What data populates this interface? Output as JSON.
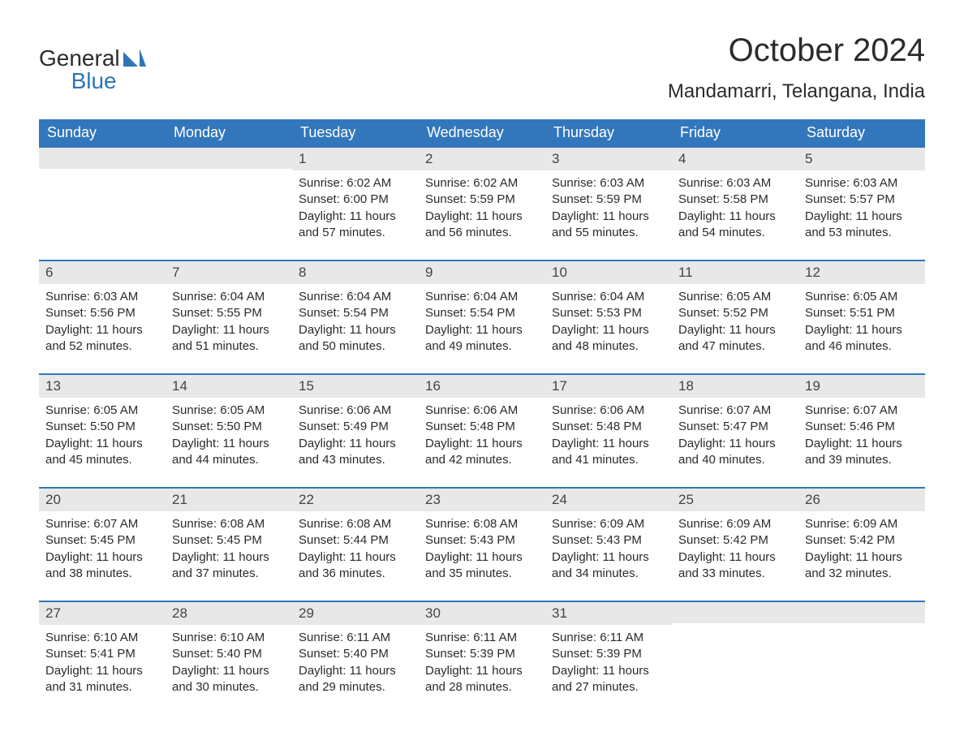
{
  "logo": {
    "top": "General",
    "bottom": "Blue"
  },
  "title": "October 2024",
  "location": "Mandamarri, Telangana, India",
  "colors": {
    "header_bg": "#3277bc",
    "header_text": "#ffffff",
    "daynum_bg": "#e8e8e8",
    "week_border": "#3277bc",
    "body_text": "#2b2b2b",
    "logo_blue": "#2f75b5"
  },
  "weekday_labels": [
    "Sunday",
    "Monday",
    "Tuesday",
    "Wednesday",
    "Thursday",
    "Friday",
    "Saturday"
  ],
  "weeks": [
    [
      null,
      null,
      {
        "n": "1",
        "sunrise": "6:02 AM",
        "sunset": "6:00 PM",
        "daylight": "11 hours and 57 minutes."
      },
      {
        "n": "2",
        "sunrise": "6:02 AM",
        "sunset": "5:59 PM",
        "daylight": "11 hours and 56 minutes."
      },
      {
        "n": "3",
        "sunrise": "6:03 AM",
        "sunset": "5:59 PM",
        "daylight": "11 hours and 55 minutes."
      },
      {
        "n": "4",
        "sunrise": "6:03 AM",
        "sunset": "5:58 PM",
        "daylight": "11 hours and 54 minutes."
      },
      {
        "n": "5",
        "sunrise": "6:03 AM",
        "sunset": "5:57 PM",
        "daylight": "11 hours and 53 minutes."
      }
    ],
    [
      {
        "n": "6",
        "sunrise": "6:03 AM",
        "sunset": "5:56 PM",
        "daylight": "11 hours and 52 minutes."
      },
      {
        "n": "7",
        "sunrise": "6:04 AM",
        "sunset": "5:55 PM",
        "daylight": "11 hours and 51 minutes."
      },
      {
        "n": "8",
        "sunrise": "6:04 AM",
        "sunset": "5:54 PM",
        "daylight": "11 hours and 50 minutes."
      },
      {
        "n": "9",
        "sunrise": "6:04 AM",
        "sunset": "5:54 PM",
        "daylight": "11 hours and 49 minutes."
      },
      {
        "n": "10",
        "sunrise": "6:04 AM",
        "sunset": "5:53 PM",
        "daylight": "11 hours and 48 minutes."
      },
      {
        "n": "11",
        "sunrise": "6:05 AM",
        "sunset": "5:52 PM",
        "daylight": "11 hours and 47 minutes."
      },
      {
        "n": "12",
        "sunrise": "6:05 AM",
        "sunset": "5:51 PM",
        "daylight": "11 hours and 46 minutes."
      }
    ],
    [
      {
        "n": "13",
        "sunrise": "6:05 AM",
        "sunset": "5:50 PM",
        "daylight": "11 hours and 45 minutes."
      },
      {
        "n": "14",
        "sunrise": "6:05 AM",
        "sunset": "5:50 PM",
        "daylight": "11 hours and 44 minutes."
      },
      {
        "n": "15",
        "sunrise": "6:06 AM",
        "sunset": "5:49 PM",
        "daylight": "11 hours and 43 minutes."
      },
      {
        "n": "16",
        "sunrise": "6:06 AM",
        "sunset": "5:48 PM",
        "daylight": "11 hours and 42 minutes."
      },
      {
        "n": "17",
        "sunrise": "6:06 AM",
        "sunset": "5:48 PM",
        "daylight": "11 hours and 41 minutes."
      },
      {
        "n": "18",
        "sunrise": "6:07 AM",
        "sunset": "5:47 PM",
        "daylight": "11 hours and 40 minutes."
      },
      {
        "n": "19",
        "sunrise": "6:07 AM",
        "sunset": "5:46 PM",
        "daylight": "11 hours and 39 minutes."
      }
    ],
    [
      {
        "n": "20",
        "sunrise": "6:07 AM",
        "sunset": "5:45 PM",
        "daylight": "11 hours and 38 minutes."
      },
      {
        "n": "21",
        "sunrise": "6:08 AM",
        "sunset": "5:45 PM",
        "daylight": "11 hours and 37 minutes."
      },
      {
        "n": "22",
        "sunrise": "6:08 AM",
        "sunset": "5:44 PM",
        "daylight": "11 hours and 36 minutes."
      },
      {
        "n": "23",
        "sunrise": "6:08 AM",
        "sunset": "5:43 PM",
        "daylight": "11 hours and 35 minutes."
      },
      {
        "n": "24",
        "sunrise": "6:09 AM",
        "sunset": "5:43 PM",
        "daylight": "11 hours and 34 minutes."
      },
      {
        "n": "25",
        "sunrise": "6:09 AM",
        "sunset": "5:42 PM",
        "daylight": "11 hours and 33 minutes."
      },
      {
        "n": "26",
        "sunrise": "6:09 AM",
        "sunset": "5:42 PM",
        "daylight": "11 hours and 32 minutes."
      }
    ],
    [
      {
        "n": "27",
        "sunrise": "6:10 AM",
        "sunset": "5:41 PM",
        "daylight": "11 hours and 31 minutes."
      },
      {
        "n": "28",
        "sunrise": "6:10 AM",
        "sunset": "5:40 PM",
        "daylight": "11 hours and 30 minutes."
      },
      {
        "n": "29",
        "sunrise": "6:11 AM",
        "sunset": "5:40 PM",
        "daylight": "11 hours and 29 minutes."
      },
      {
        "n": "30",
        "sunrise": "6:11 AM",
        "sunset": "5:39 PM",
        "daylight": "11 hours and 28 minutes."
      },
      {
        "n": "31",
        "sunrise": "6:11 AM",
        "sunset": "5:39 PM",
        "daylight": "11 hours and 27 minutes."
      },
      null,
      null
    ]
  ],
  "labels": {
    "sunrise": "Sunrise:",
    "sunset": "Sunset:",
    "daylight": "Daylight:"
  }
}
